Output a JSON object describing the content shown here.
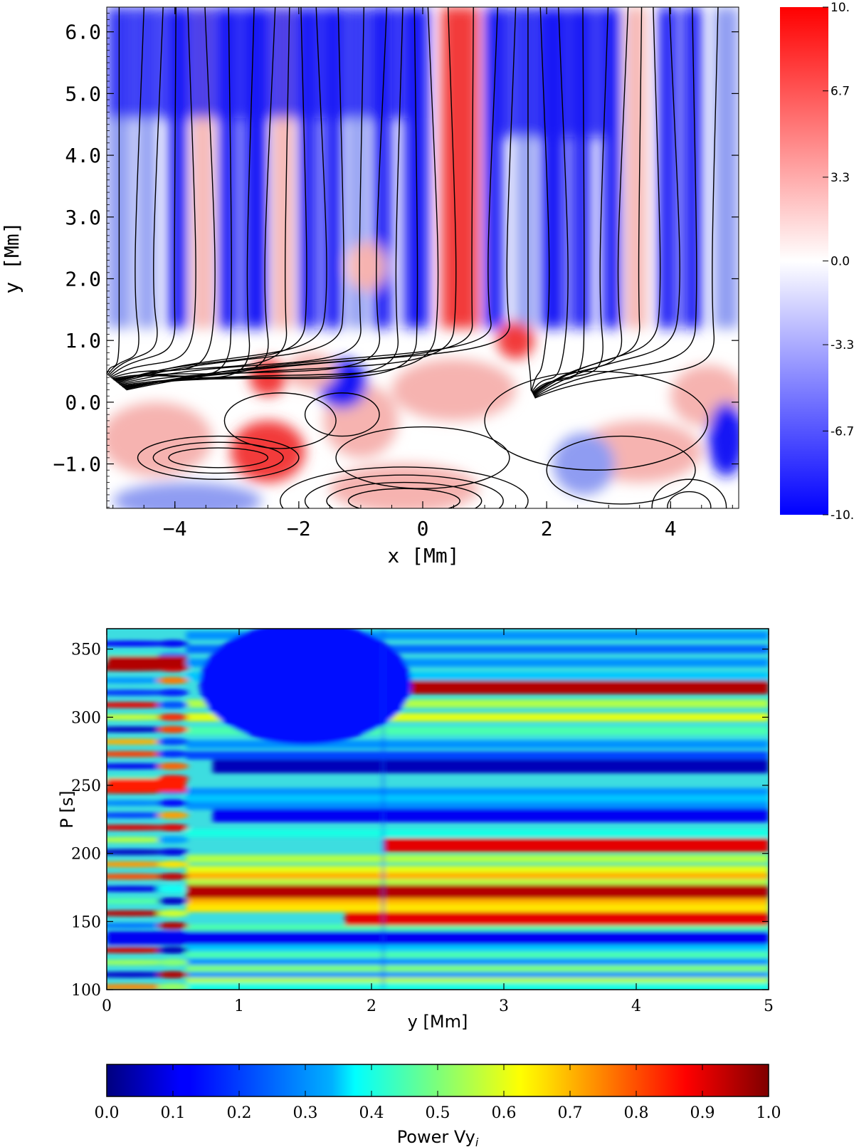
{
  "chart_data": [
    {
      "type": "heatmap",
      "title": "",
      "xlabel": "x  [Mm]",
      "ylabel": "y  [Mm]",
      "xlim": [
        -5.1,
        5.1
      ],
      "ylim": [
        -1.72,
        6.4
      ],
      "x_ticks": [
        -4,
        -2,
        0,
        2,
        4
      ],
      "x_tick_labels": [
        "−4",
        "−2",
        "0",
        "2",
        "4"
      ],
      "y_ticks": [
        -1.0,
        0.0,
        1.0,
        2.0,
        3.0,
        4.0,
        5.0,
        6.0
      ],
      "y_tick_labels": [
        "−1.0",
        "0.0",
        "1.0",
        "2.0",
        "3.0",
        "4.0",
        "5.0",
        "6.0"
      ],
      "colormap": "blue-white-red",
      "colorbar": {
        "range": [
          -10,
          10
        ],
        "ticks": [
          10,
          6.7,
          3.3,
          0.0,
          -3.3,
          -6.7,
          -10
        ],
        "tick_labels": [
          "10.",
          "6.7",
          "3.3",
          "0.0",
          "-3.3",
          "-6.7",
          "-10."
        ]
      },
      "overlay": "black magnetic field lines",
      "colors": {
        "negative": "#0000ff",
        "zero": "#ffffff",
        "positive": "#ff0000",
        "lines": "#000000"
      }
    },
    {
      "type": "heatmap",
      "title": "",
      "xlabel": "y [Mm]",
      "ylabel": "P [s]",
      "xlim": [
        0,
        5
      ],
      "ylim": [
        100,
        365
      ],
      "x_ticks": [
        0,
        1,
        2,
        3,
        4,
        5
      ],
      "x_tick_labels": [
        "0",
        "1",
        "2",
        "3",
        "4",
        "5"
      ],
      "y_ticks": [
        100,
        150,
        200,
        250,
        300,
        350
      ],
      "y_tick_labels": [
        "100",
        "150",
        "200",
        "250",
        "300",
        "350"
      ],
      "colormap": "jet",
      "colorbar": {
        "label": "Power Vy",
        "label_subscript": "i",
        "range": [
          0.0,
          1.0
        ],
        "ticks": [
          0.0,
          0.1,
          0.2,
          0.3,
          0.4,
          0.5,
          0.6,
          0.7,
          0.8,
          0.9,
          1.0
        ],
        "tick_labels": [
          "0.0",
          "0.1",
          "0.2",
          "0.3",
          "0.4",
          "0.5",
          "0.6",
          "0.7",
          "0.8",
          "0.9",
          "1.0"
        ]
      },
      "high_power_bands": [
        {
          "period": 322,
          "y_from": 2.3,
          "y_to": 5.0,
          "power": 0.95
        },
        {
          "period": 206,
          "y_from": 2.1,
          "y_to": 5.0,
          "power": 0.9
        },
        {
          "period": 172,
          "y_from": 0.6,
          "y_to": 5.0,
          "power": 0.95
        },
        {
          "period": 152,
          "y_from": 1.8,
          "y_to": 5.0,
          "power": 0.9
        },
        {
          "period": 340,
          "y_from": 0.0,
          "y_to": 0.6,
          "power": 0.95
        },
        {
          "period": 250,
          "y_from": 0.0,
          "y_to": 0.6,
          "power": 0.85
        }
      ],
      "low_power_bands": [
        {
          "period": 264,
          "y_from": 0.8,
          "y_to": 5.0,
          "power": 0.05
        },
        {
          "period": 228,
          "y_from": 0.8,
          "y_to": 5.0,
          "power": 0.1
        },
        {
          "period": 138,
          "y_from": 0.0,
          "y_to": 5.0,
          "power": 0.1
        }
      ]
    }
  ]
}
